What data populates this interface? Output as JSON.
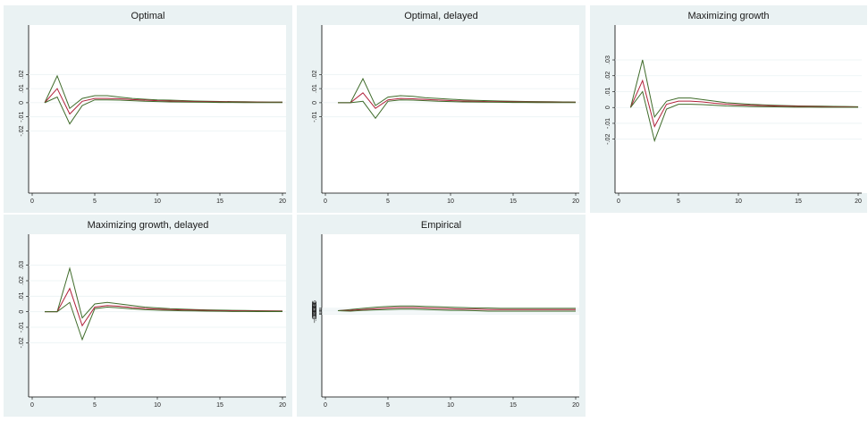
{
  "colors": {
    "ci_line": "#3f6b2a",
    "irf_line": "#b0203a",
    "axis": "#000000",
    "grid": "#eaf2f3"
  },
  "chart_data": [
    {
      "type": "line",
      "title": "Optimal",
      "x": [
        1,
        2,
        3,
        4,
        5,
        6,
        7,
        8,
        9,
        10,
        11,
        12,
        13,
        14,
        15,
        16,
        17,
        18,
        19,
        20
      ],
      "xticks": [
        0,
        5,
        10,
        15,
        20
      ],
      "xlim": [
        0,
        20
      ],
      "ylim": [
        -0.064,
        0.055
      ],
      "yticks": [
        -0.02,
        -0.01,
        0,
        0.01,
        0.02
      ],
      "ytick_labels": [
        "-.02",
        "-.01",
        "0",
        ".01",
        ".02"
      ],
      "series": [
        {
          "role": "upper",
          "values": [
            0,
            0.019,
            -0.004,
            0.003,
            0.005,
            0.005,
            0.004,
            0.003,
            0.0025,
            0.002,
            0.0018,
            0.0015,
            0.0012,
            0.001,
            0.0009,
            0.0008,
            0.0007,
            0.0006,
            0.0005,
            0.0005
          ]
        },
        {
          "role": "irf",
          "values": [
            0,
            0.01,
            -0.008,
            0.001,
            0.003,
            0.003,
            0.0028,
            0.0022,
            0.0018,
            0.0014,
            0.0012,
            0.001,
            0.0008,
            0.0007,
            0.0006,
            0.0005,
            0.0004,
            0.0004,
            0.0003,
            0.0003
          ]
        },
        {
          "role": "lower",
          "values": [
            0,
            0.004,
            -0.015,
            -0.002,
            0.002,
            0.002,
            0.0018,
            0.0014,
            0.001,
            0.0008,
            0.0006,
            0.0005,
            0.0004,
            0.0003,
            0.0002,
            0.0002,
            0.0001,
            0.0001,
            0.0001,
            0.0001
          ]
        }
      ]
    },
    {
      "type": "line",
      "title": "Optimal, delayed",
      "x": [
        1,
        2,
        3,
        4,
        5,
        6,
        7,
        8,
        9,
        10,
        11,
        12,
        13,
        14,
        15,
        16,
        17,
        18,
        19,
        20
      ],
      "xticks": [
        0,
        5,
        10,
        15,
        20
      ],
      "xlim": [
        0,
        20
      ],
      "ylim": [
        -0.064,
        0.055
      ],
      "yticks": [
        -0.01,
        0,
        0.01,
        0.02
      ],
      "ytick_labels": [
        "-.01",
        "0",
        ".01",
        ".02"
      ],
      "series": [
        {
          "role": "upper",
          "values": [
            0,
            0,
            0.017,
            -0.002,
            0.004,
            0.005,
            0.0045,
            0.0035,
            0.003,
            0.0025,
            0.002,
            0.0017,
            0.0014,
            0.0012,
            0.001,
            0.0009,
            0.0008,
            0.0007,
            0.0006,
            0.0005
          ]
        },
        {
          "role": "irf",
          "values": [
            0,
            0,
            0.007,
            -0.004,
            0.002,
            0.003,
            0.0028,
            0.0023,
            0.0019,
            0.0015,
            0.0012,
            0.001,
            0.0008,
            0.0007,
            0.0006,
            0.0005,
            0.0004,
            0.0004,
            0.0003,
            0.0003
          ]
        },
        {
          "role": "lower",
          "values": [
            0,
            0,
            0.001,
            -0.011,
            0.001,
            0.002,
            0.0018,
            0.0014,
            0.001,
            0.0008,
            0.0006,
            0.0005,
            0.0004,
            0.0003,
            0.0002,
            0.0002,
            0.0001,
            0.0001,
            0.0001,
            0.0001
          ]
        }
      ]
    },
    {
      "type": "line",
      "title": "Maximizing growth",
      "x": [
        1,
        2,
        3,
        4,
        5,
        6,
        7,
        8,
        9,
        10,
        11,
        12,
        13,
        14,
        15,
        16,
        17,
        18,
        19,
        20
      ],
      "xticks": [
        0,
        5,
        10,
        15,
        20
      ],
      "xlim": [
        0,
        20
      ],
      "ylim": [
        -0.054,
        0.052
      ],
      "yticks": [
        -0.02,
        -0.01,
        0,
        0.01,
        0.02,
        0.03
      ],
      "ytick_labels": [
        "-.02",
        "-.01",
        "0",
        ".01",
        ".02",
        ".03"
      ],
      "series": [
        {
          "role": "upper",
          "values": [
            0,
            0.03,
            -0.006,
            0.004,
            0.006,
            0.006,
            0.005,
            0.004,
            0.003,
            0.0025,
            0.002,
            0.0017,
            0.0014,
            0.0012,
            0.001,
            0.0009,
            0.0008,
            0.0007,
            0.0006,
            0.0005
          ]
        },
        {
          "role": "irf",
          "values": [
            0,
            0.017,
            -0.012,
            0.002,
            0.004,
            0.004,
            0.0035,
            0.0027,
            0.0021,
            0.0017,
            0.0014,
            0.0012,
            0.001,
            0.0008,
            0.0007,
            0.0006,
            0.0005,
            0.0004,
            0.0004,
            0.0003
          ]
        },
        {
          "role": "lower",
          "values": [
            0,
            0.01,
            -0.021,
            -0.001,
            0.002,
            0.002,
            0.0018,
            0.0014,
            0.001,
            0.0008,
            0.0006,
            0.0005,
            0.0004,
            0.0003,
            0.0002,
            0.0002,
            0.0001,
            0.0001,
            0.0001,
            0.0001
          ]
        }
      ]
    },
    {
      "type": "line",
      "title": "Maximizing growth, delayed",
      "x": [
        1,
        2,
        3,
        4,
        5,
        6,
        7,
        8,
        9,
        10,
        11,
        12,
        13,
        14,
        15,
        16,
        17,
        18,
        19,
        20
      ],
      "xticks": [
        0,
        5,
        10,
        15,
        20
      ],
      "xlim": [
        0,
        20
      ],
      "ylim": [
        -0.055,
        0.05
      ],
      "yticks": [
        -0.02,
        -0.01,
        0,
        0.01,
        0.02,
        0.03
      ],
      "ytick_labels": [
        "-.02",
        "-.01",
        "0",
        ".01",
        ".02",
        ".03"
      ],
      "series": [
        {
          "role": "upper",
          "values": [
            0,
            0,
            0.028,
            -0.004,
            0.005,
            0.006,
            0.005,
            0.004,
            0.003,
            0.0025,
            0.002,
            0.0017,
            0.0014,
            0.0012,
            0.001,
            0.0009,
            0.0008,
            0.0007,
            0.0006,
            0.0005
          ]
        },
        {
          "role": "irf",
          "values": [
            0,
            0,
            0.015,
            -0.009,
            0.003,
            0.004,
            0.0035,
            0.0027,
            0.0021,
            0.0017,
            0.0014,
            0.0012,
            0.001,
            0.0008,
            0.0007,
            0.0006,
            0.0005,
            0.0004,
            0.0004,
            0.0003
          ]
        },
        {
          "role": "lower",
          "values": [
            0,
            0,
            0.006,
            -0.018,
            0.002,
            0.003,
            0.0025,
            0.0018,
            0.0013,
            0.001,
            0.0008,
            0.0006,
            0.0005,
            0.0004,
            0.0003,
            0.0002,
            0.0002,
            0.0001,
            0.0001,
            0.0001
          ]
        }
      ]
    },
    {
      "type": "line",
      "title": "Empirical",
      "x": [
        1,
        2,
        3,
        4,
        5,
        6,
        7,
        8,
        9,
        10,
        11,
        12,
        13,
        14,
        15,
        16,
        17,
        18,
        19,
        20
      ],
      "xticks": [
        0,
        5,
        10,
        15,
        20
      ],
      "xlim": [
        0,
        20
      ],
      "ylim": [
        -0.022,
        0.0195
      ],
      "yticks": [
        -0.0009,
        -0.0006,
        -0.0003,
        0,
        0.0003,
        0.0006
      ],
      "ytick_labels": [
        "-.0009",
        "-.0006",
        "-.0003",
        "0",
        ".0003",
        ".0006"
      ],
      "series": [
        {
          "role": "upper",
          "values": [
            0,
            0.0003,
            0.0006,
            0.0009,
            0.0011,
            0.0012,
            0.0012,
            0.0011,
            0.001,
            0.0009,
            0.0008,
            0.0007,
            0.0007,
            0.0006,
            0.0006,
            0.0006,
            0.0006,
            0.0006,
            0.0006,
            0.0006
          ]
        },
        {
          "role": "irf",
          "values": [
            0,
            0.0001,
            0.0003,
            0.0005,
            0.0007,
            0.0008,
            0.0008,
            0.0007,
            0.0006,
            0.0005,
            0.0004,
            0.0004,
            0.0003,
            0.0003,
            0.0003,
            0.0003,
            0.0003,
            0.0003,
            0.0003,
            0.0003
          ]
        },
        {
          "role": "lower",
          "values": [
            0,
            -0.0001,
            0.0001,
            0.0002,
            0.0003,
            0.0004,
            0.0004,
            0.0003,
            0.0002,
            0.0001,
            0.0001,
            0,
            -0.0001,
            -0.0001,
            -0.0001,
            -0.0001,
            -0.0001,
            -0.0001,
            -0.0001,
            -0.0001
          ]
        }
      ]
    }
  ]
}
